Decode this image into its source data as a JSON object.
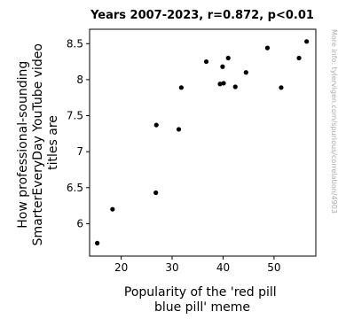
{
  "chart_data": {
    "type": "scatter",
    "title": "Years 2007-2023, r=0.872, p<0.01",
    "xlabel_lines": [
      "Popularity of the 'red pill",
      "blue pill' meme"
    ],
    "ylabel_lines": [
      "How professional-sounding",
      "SmarterEveryDay YouTube video",
      "titles are"
    ],
    "watermark": "More info: tylervigen.com/spurious/correlation/4903",
    "xlim": [
      13.8,
      58.2
    ],
    "ylim": [
      5.55,
      8.7
    ],
    "xticks": [
      20,
      30,
      40,
      50
    ],
    "yticks": [
      6,
      6.5,
      7,
      7.5,
      8,
      8.5
    ],
    "ytick_labels": [
      "6",
      "6.5",
      "7",
      "7.5",
      "8",
      "8.5"
    ],
    "grid": false,
    "marker_color": "#000000",
    "points": [
      {
        "x": 15.3,
        "y": 5.73
      },
      {
        "x": 18.3,
        "y": 6.2
      },
      {
        "x": 26.8,
        "y": 6.43
      },
      {
        "x": 26.9,
        "y": 7.37
      },
      {
        "x": 31.3,
        "y": 7.31
      },
      {
        "x": 31.8,
        "y": 7.89
      },
      {
        "x": 36.7,
        "y": 8.25
      },
      {
        "x": 39.4,
        "y": 7.94
      },
      {
        "x": 39.9,
        "y": 8.18
      },
      {
        "x": 40.1,
        "y": 7.95
      },
      {
        "x": 41.0,
        "y": 8.3
      },
      {
        "x": 42.4,
        "y": 7.9
      },
      {
        "x": 44.5,
        "y": 8.1
      },
      {
        "x": 48.7,
        "y": 8.44
      },
      {
        "x": 51.4,
        "y": 7.89
      },
      {
        "x": 54.9,
        "y": 8.3
      },
      {
        "x": 56.4,
        "y": 8.53
      }
    ]
  }
}
